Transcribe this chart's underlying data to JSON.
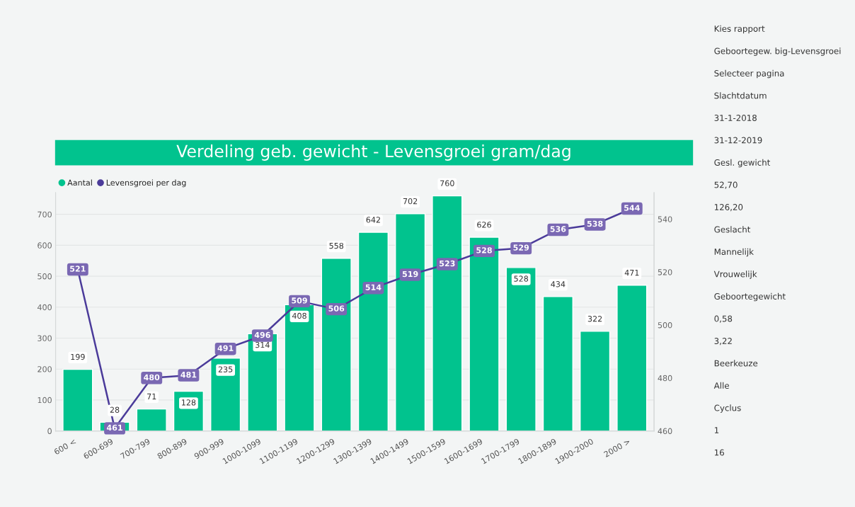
{
  "chart_data": {
    "type": "bar",
    "title": "Verdeling geb. gewicht - Levensgroei gram/dag",
    "categories": [
      "600 <",
      "600-699",
      "700-799",
      "800-899",
      "900-999",
      "1000-1099",
      "1100-1199",
      "1200-1299",
      "1300-1399",
      "1400-1499",
      "1500-1599",
      "1600-1699",
      "1700-1799",
      "1800-1899",
      "1900-2000",
      "2000 >"
    ],
    "series": [
      {
        "name": "Aantal",
        "color": "#01c38e",
        "values": [
          199,
          28,
          71,
          128,
          235,
          314,
          408,
          558,
          642,
          702,
          760,
          626,
          528,
          434,
          322,
          471
        ]
      },
      {
        "name": "Levensgroei per dag",
        "type": "line",
        "axis": "y2",
        "marker": "square",
        "color": "#4b3b9a",
        "values": [
          521,
          461,
          480,
          481,
          491,
          496,
          509,
          506,
          514,
          519,
          523,
          528,
          529,
          536,
          538,
          544
        ]
      }
    ],
    "ylim": [
      0,
      770
    ],
    "yticks": [
      0,
      100,
      200,
      300,
      400,
      500,
      600,
      700
    ],
    "y2lim": [
      460,
      550
    ],
    "y2ticks": [
      460,
      480,
      500,
      520,
      540
    ],
    "data_labels": true,
    "legend": "top left",
    "grid": "y",
    "annotations": [
      "Kies rapport",
      "Geboortegew. big-Levensgroei",
      "Selecteer pagina",
      "Slachtdatum",
      "31-1-2018",
      "31-12-2019",
      "Gesl. gewicht",
      "52,70",
      "126,20",
      "Geslacht",
      "Mannelijk",
      "Vrouwelijk",
      "Geboortegewicht",
      "0,58",
      "3,22",
      "Beerkeuze",
      "Alle",
      "Cyclus",
      "1",
      "16"
    ]
  }
}
